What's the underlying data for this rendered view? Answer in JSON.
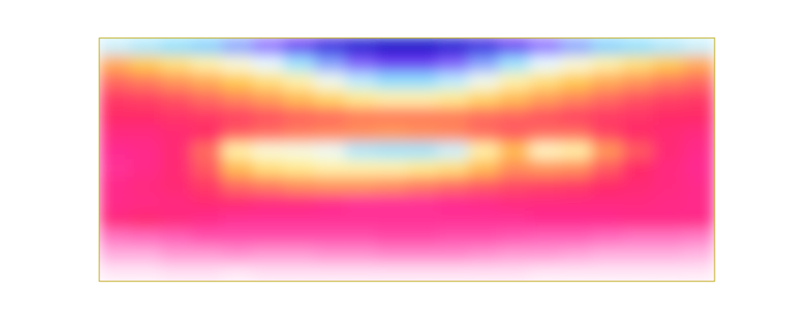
{
  "chart_data": {
    "type": "heatmap",
    "tick_labels": false,
    "zlim": [
      0,
      1
    ],
    "values": [
      [
        0.3,
        0.28,
        0.26,
        0.24,
        0.2,
        0.15,
        0.1,
        0.05,
        0.02,
        0.0,
        0.0,
        0.02,
        0.05,
        0.1,
        0.15,
        0.2,
        0.24,
        0.26,
        0.28,
        0.3
      ],
      [
        0.52,
        0.48,
        0.44,
        0.4,
        0.36,
        0.32,
        0.27,
        0.2,
        0.14,
        0.11,
        0.11,
        0.14,
        0.2,
        0.27,
        0.32,
        0.36,
        0.4,
        0.44,
        0.48,
        0.52
      ],
      [
        0.6,
        0.58,
        0.55,
        0.52,
        0.48,
        0.44,
        0.4,
        0.34,
        0.29,
        0.26,
        0.26,
        0.29,
        0.34,
        0.4,
        0.44,
        0.48,
        0.52,
        0.55,
        0.58,
        0.6
      ],
      [
        0.66,
        0.65,
        0.63,
        0.6,
        0.57,
        0.54,
        0.5,
        0.46,
        0.42,
        0.4,
        0.4,
        0.42,
        0.46,
        0.5,
        0.54,
        0.57,
        0.6,
        0.63,
        0.65,
        0.66
      ],
      [
        0.68,
        0.68,
        0.67,
        0.66,
        0.65,
        0.63,
        0.61,
        0.6,
        0.58,
        0.58,
        0.58,
        0.58,
        0.6,
        0.61,
        0.63,
        0.65,
        0.66,
        0.67,
        0.68,
        0.68
      ],
      [
        0.72,
        0.72,
        0.7,
        0.68,
        0.62,
        0.6,
        0.58,
        0.57,
        0.56,
        0.55,
        0.56,
        0.57,
        0.6,
        0.62,
        0.6,
        0.6,
        0.65,
        0.68,
        0.7,
        0.72
      ],
      [
        0.75,
        0.74,
        0.7,
        0.6,
        0.4,
        0.36,
        0.35,
        0.33,
        0.28,
        0.27,
        0.27,
        0.3,
        0.4,
        0.5,
        0.38,
        0.4,
        0.55,
        0.62,
        0.7,
        0.74
      ],
      [
        0.76,
        0.74,
        0.7,
        0.62,
        0.5,
        0.44,
        0.42,
        0.4,
        0.4,
        0.4,
        0.42,
        0.44,
        0.5,
        0.56,
        0.55,
        0.56,
        0.62,
        0.68,
        0.72,
        0.75
      ],
      [
        0.74,
        0.72,
        0.7,
        0.66,
        0.6,
        0.58,
        0.56,
        0.55,
        0.55,
        0.56,
        0.58,
        0.6,
        0.62,
        0.64,
        0.65,
        0.66,
        0.68,
        0.7,
        0.72,
        0.74
      ],
      [
        0.74,
        0.73,
        0.72,
        0.7,
        0.7,
        0.72,
        0.72,
        0.74,
        0.76,
        0.76,
        0.76,
        0.75,
        0.74,
        0.72,
        0.72,
        0.72,
        0.72,
        0.72,
        0.73,
        0.74
      ],
      [
        0.72,
        0.7,
        0.72,
        0.74,
        0.76,
        0.76,
        0.76,
        0.76,
        0.76,
        0.76,
        0.76,
        0.76,
        0.76,
        0.76,
        0.75,
        0.75,
        0.75,
        0.74,
        0.74,
        0.74
      ],
      [
        0.84,
        0.83,
        0.82,
        0.8,
        0.8,
        0.8,
        0.8,
        0.8,
        0.8,
        0.79,
        0.79,
        0.8,
        0.8,
        0.81,
        0.82,
        0.82,
        0.83,
        0.84,
        0.84,
        0.85
      ],
      [
        0.9,
        0.9,
        0.88,
        0.88,
        0.87,
        0.88,
        0.88,
        0.87,
        0.87,
        0.86,
        0.86,
        0.86,
        0.87,
        0.88,
        0.88,
        0.89,
        0.9,
        0.9,
        0.9,
        0.91
      ],
      [
        0.97,
        0.97,
        0.96,
        0.96,
        0.97,
        0.96,
        0.96,
        0.96,
        0.96,
        0.96,
        0.96,
        0.96,
        0.96,
        0.96,
        0.97,
        0.97,
        0.97,
        0.97,
        0.97,
        0.97
      ]
    ]
  }
}
